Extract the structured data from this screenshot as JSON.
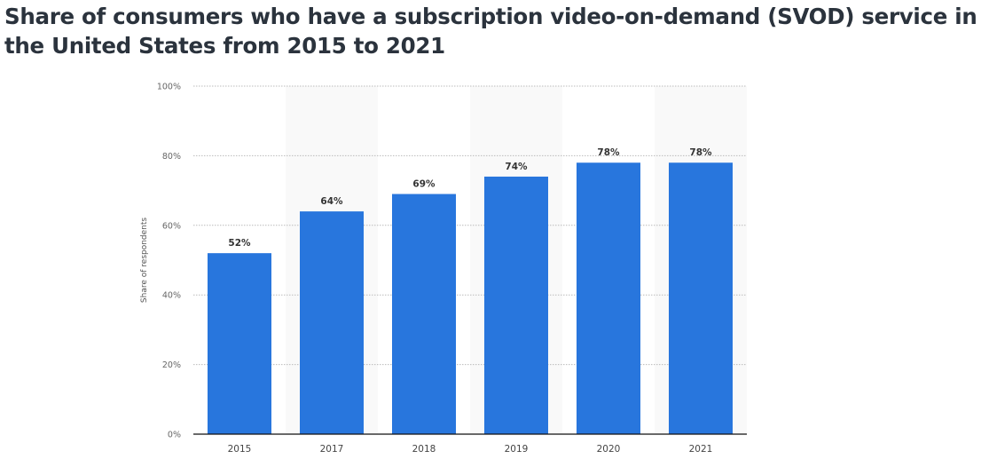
{
  "chart_data": {
    "type": "bar",
    "title": "Share of consumers who have a subscription video-on-demand (SVOD) service in the United States from 2015 to 2021",
    "categories": [
      "2015",
      "2017",
      "2018",
      "2019",
      "2020",
      "2021"
    ],
    "values": [
      52,
      64,
      69,
      74,
      78,
      78
    ],
    "data_labels": [
      "52%",
      "64%",
      "69%",
      "74%",
      "78%",
      "78%"
    ],
    "xlabel": "",
    "ylabel": "Share of respondents",
    "ylim": [
      0,
      100
    ],
    "yticks": [
      0,
      20,
      40,
      60,
      80,
      100
    ],
    "ytick_labels": [
      "0%",
      "20%",
      "40%",
      "60%",
      "80%",
      "100%"
    ],
    "grid": true,
    "bar_color": "#2876dd"
  }
}
